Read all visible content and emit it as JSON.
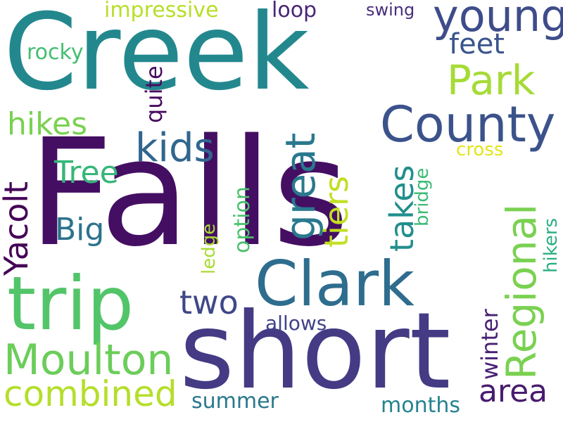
{
  "words": [
    {
      "id": "creek",
      "text": "Creek",
      "color": "#23888e",
      "vertical": false
    },
    {
      "id": "falls",
      "text": "Falls",
      "color": "#440f63",
      "vertical": false
    },
    {
      "id": "short",
      "text": "short",
      "color": "#443b84",
      "vertical": false
    },
    {
      "id": "trip",
      "text": "trip",
      "color": "#52c569",
      "vertical": false
    },
    {
      "id": "clark",
      "text": "Clark",
      "color": "#2e6d8e",
      "vertical": false
    },
    {
      "id": "county",
      "text": "County",
      "color": "#3b528b",
      "vertical": false
    },
    {
      "id": "young",
      "text": "young",
      "color": "#3e4c8a",
      "vertical": false
    },
    {
      "id": "park",
      "text": "Park",
      "color": "#a5db36",
      "vertical": false
    },
    {
      "id": "feet",
      "text": "feet",
      "color": "#3a548c",
      "vertical": false
    },
    {
      "id": "kids",
      "text": "kids",
      "color": "#31668e",
      "vertical": false
    },
    {
      "id": "hikes",
      "text": "hikes",
      "color": "#7ad151",
      "vertical": false
    },
    {
      "id": "tree",
      "text": "Tree",
      "color": "#35b779",
      "vertical": false
    },
    {
      "id": "big",
      "text": "Big",
      "color": "#2c728e",
      "vertical": false
    },
    {
      "id": "moulton",
      "text": "Moulton",
      "color": "#6ccd5a",
      "vertical": false
    },
    {
      "id": "combined",
      "text": "combined",
      "color": "#b5de2b",
      "vertical": false
    },
    {
      "id": "two",
      "text": "two",
      "color": "#3f4788",
      "vertical": false
    },
    {
      "id": "area",
      "text": "area",
      "color": "#481c6e",
      "vertical": false
    },
    {
      "id": "impressive",
      "text": "impressive",
      "color": "#b8de29",
      "vertical": false
    },
    {
      "id": "loop",
      "text": "loop",
      "color": "#482576",
      "vertical": false
    },
    {
      "id": "swing",
      "text": "swing",
      "color": "#472e7c",
      "vertical": false
    },
    {
      "id": "rocky",
      "text": "rocky",
      "color": "#42be71",
      "vertical": false
    },
    {
      "id": "allows",
      "text": "allows",
      "color": "#414287",
      "vertical": false
    },
    {
      "id": "summer",
      "text": "summer",
      "color": "#2a788e",
      "vertical": false
    },
    {
      "id": "months",
      "text": "months",
      "color": "#25838e",
      "vertical": false
    },
    {
      "id": "cross",
      "text": "cross",
      "color": "#e5e419",
      "vertical": false
    },
    {
      "id": "quite",
      "text": "quite",
      "color": "#460b5e",
      "vertical": true
    },
    {
      "id": "yacolt",
      "text": "Yacolt",
      "color": "#440256",
      "vertical": true
    },
    {
      "id": "great",
      "text": "great",
      "color": "#2a788e",
      "vertical": true
    },
    {
      "id": "tiers",
      "text": "tiers",
      "color": "#c2df23",
      "vertical": true
    },
    {
      "id": "takes",
      "text": "takes",
      "color": "#218f8d",
      "vertical": true
    },
    {
      "id": "regional",
      "text": "Regional",
      "color": "#7ad151",
      "vertical": true
    },
    {
      "id": "bridge",
      "text": "bridge",
      "color": "#3bbb75",
      "vertical": true
    },
    {
      "id": "option",
      "text": "option",
      "color": "#4ac16d",
      "vertical": true
    },
    {
      "id": "ledge",
      "text": "ledge",
      "color": "#a8db34",
      "vertical": true
    },
    {
      "id": "hikers",
      "text": "hikers",
      "color": "#29af7f",
      "vertical": true
    },
    {
      "id": "winter",
      "text": "winter",
      "color": "#482173",
      "vertical": true
    }
  ]
}
